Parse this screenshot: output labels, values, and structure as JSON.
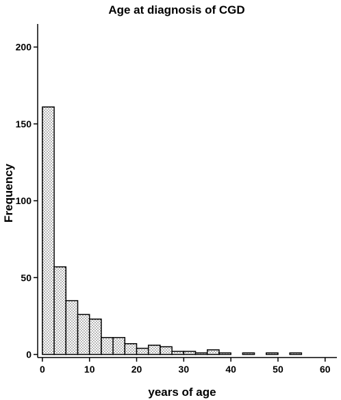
{
  "chart_data": {
    "type": "histogram",
    "title": "Age at diagnosis of CGD",
    "x_label": "years of age",
    "y_label": "Frequency",
    "bins": [
      0,
      2.5,
      5,
      7.5,
      10,
      12.5,
      15,
      17.5,
      20,
      22.5,
      25,
      27.5,
      30,
      32.5,
      35,
      37.5,
      40,
      42.5,
      45,
      47.5,
      50,
      52.5,
      55
    ],
    "counts": [
      161,
      57,
      35,
      26,
      23,
      11,
      11,
      7,
      4,
      6,
      5,
      2,
      2,
      1,
      3,
      1,
      0,
      1,
      0,
      1,
      0,
      1
    ],
    "color": "#000000",
    "xlim": [
      -1,
      62.5
    ],
    "ylim": [
      -2,
      215
    ],
    "xticks": [
      0,
      10,
      20,
      30,
      40,
      50,
      60
    ],
    "yticks": [
      0,
      50,
      100,
      150,
      200
    ]
  }
}
